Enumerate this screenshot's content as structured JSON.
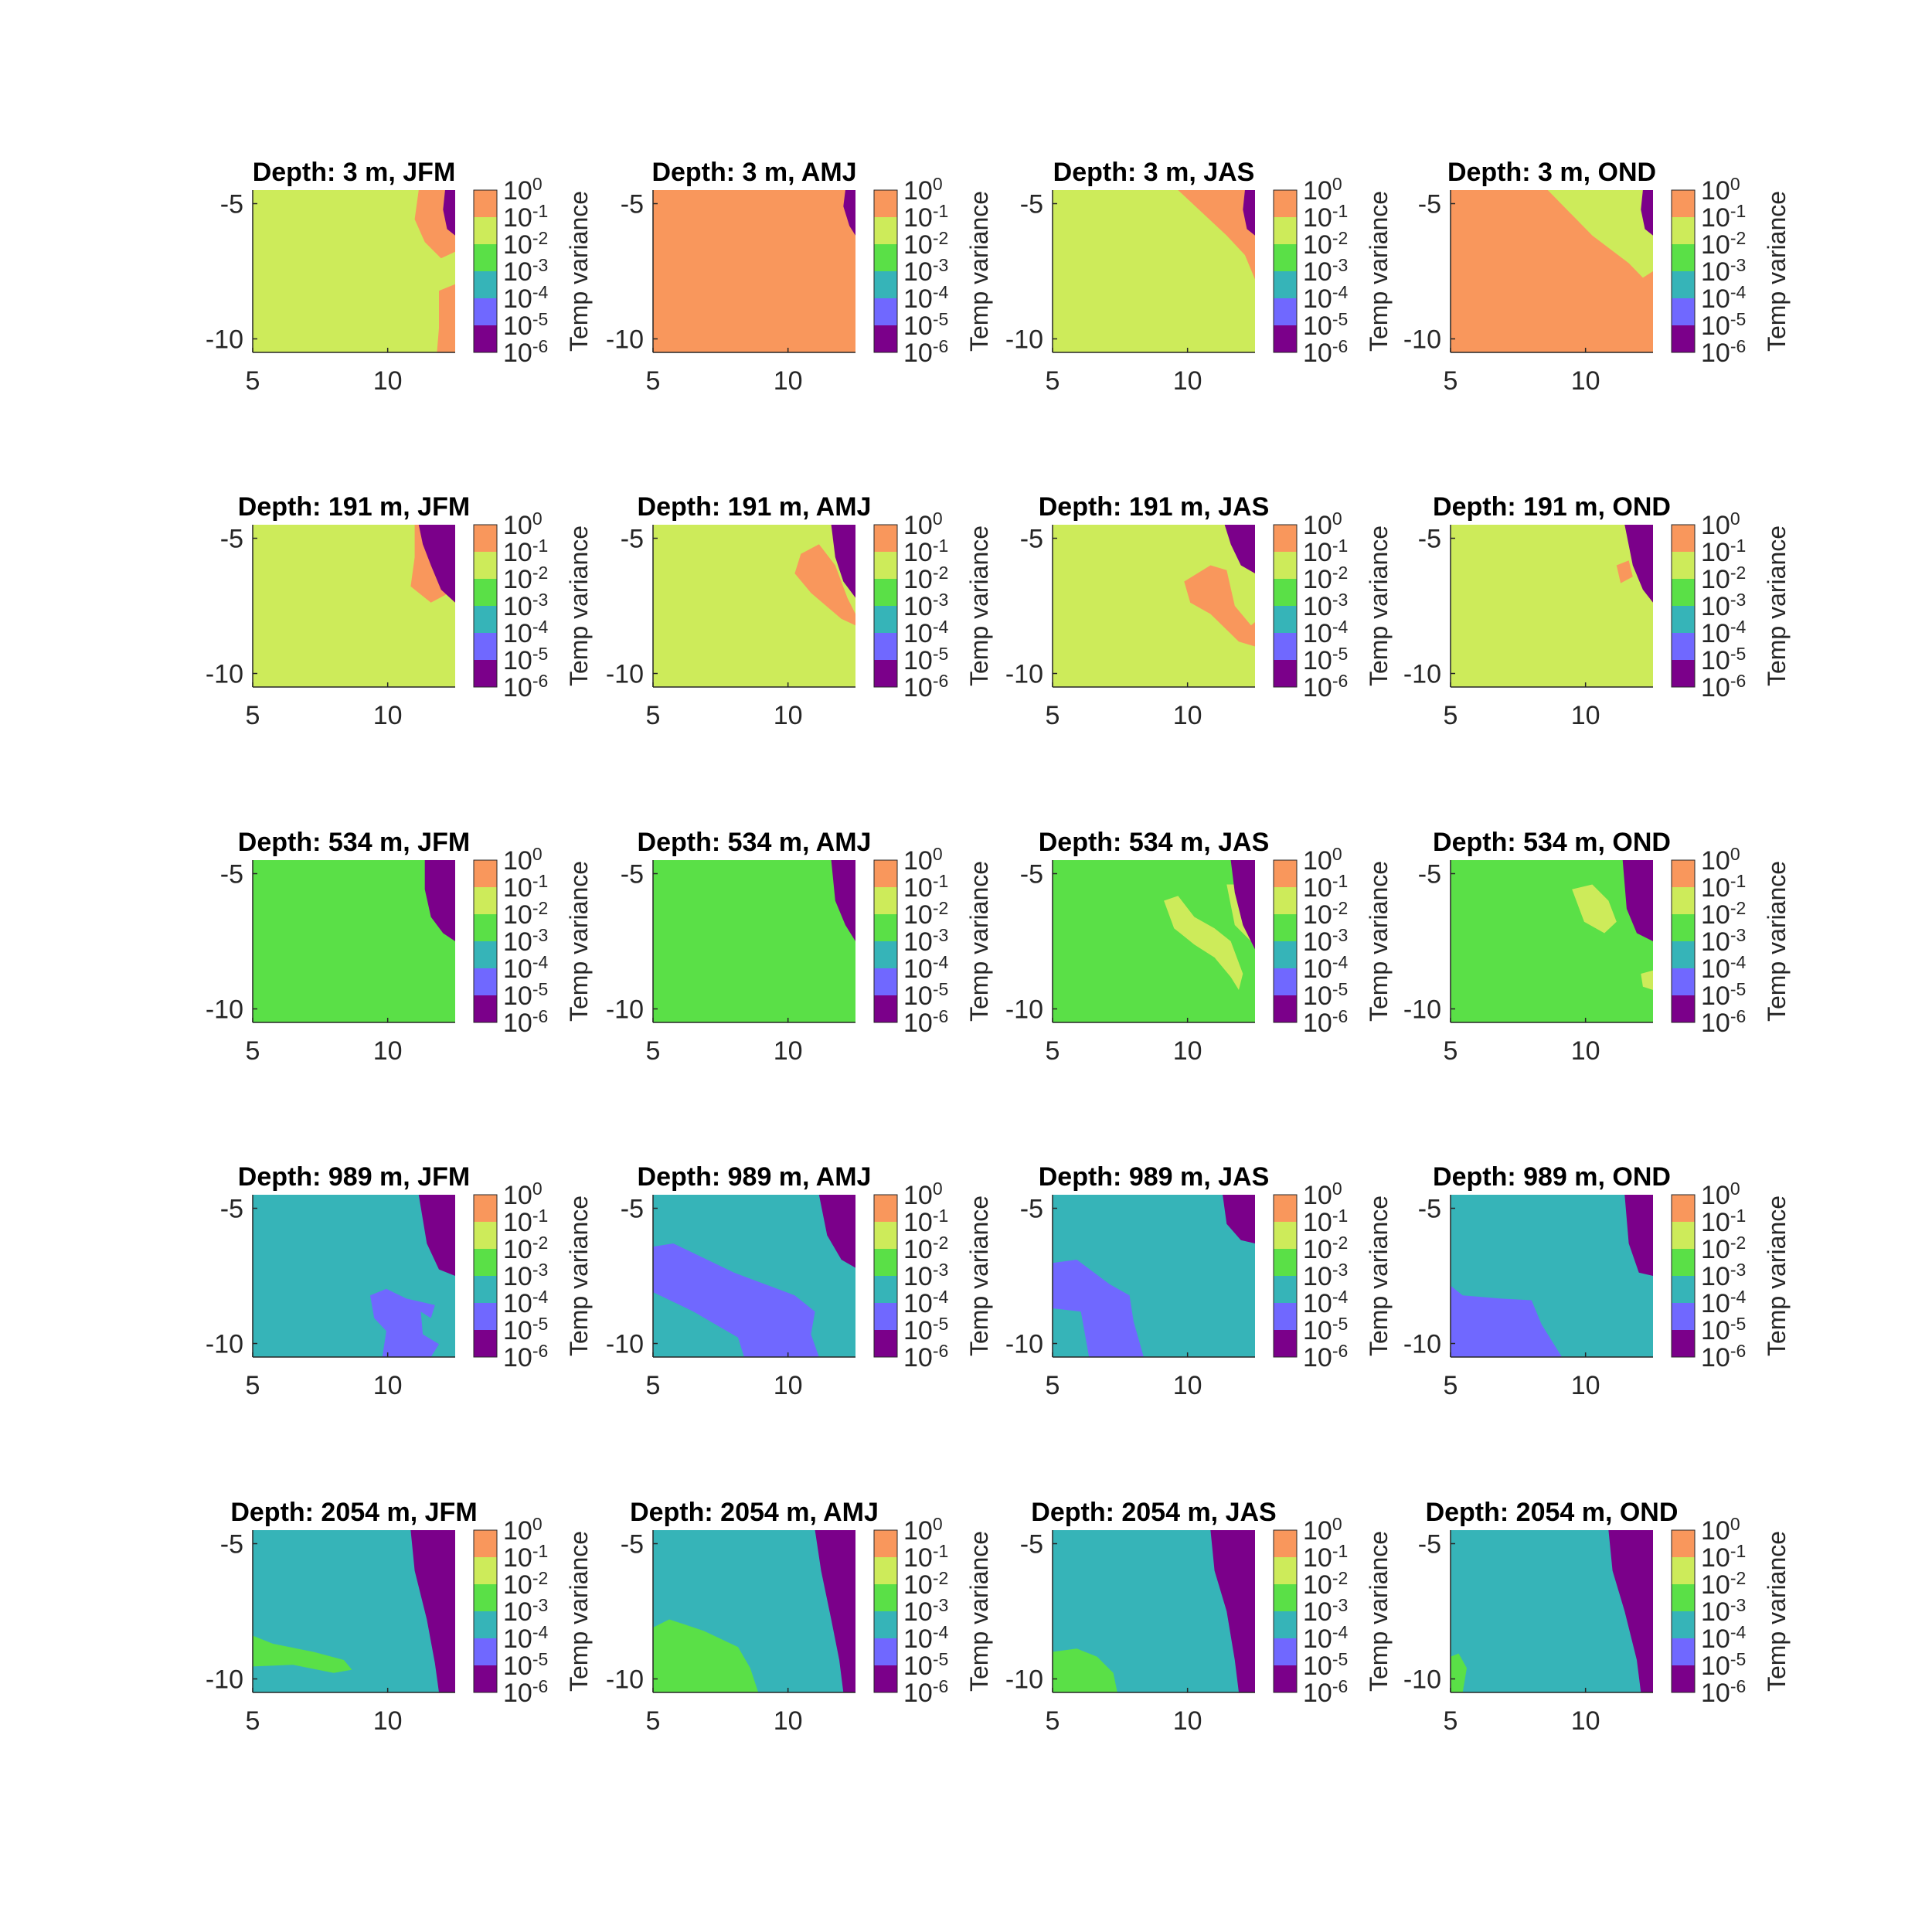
{
  "chart_data": {
    "type": "heatmap",
    "layout": {
      "rows": 5,
      "cols": 4
    },
    "x_ticks": [
      5,
      10
    ],
    "y_ticks": [
      -5,
      -10
    ],
    "xlim": [
      5,
      12.5
    ],
    "ylim": [
      -10.5,
      -4.5
    ],
    "colorbar": {
      "label": "Temp variance",
      "scale": "log",
      "ticks": [
        {
          "base": "10",
          "exp": "0"
        },
        {
          "base": "10",
          "exp": "-1"
        },
        {
          "base": "10",
          "exp": "-2"
        },
        {
          "base": "10",
          "exp": "-3"
        },
        {
          "base": "10",
          "exp": "-4"
        },
        {
          "base": "10",
          "exp": "-5"
        },
        {
          "base": "10",
          "exp": "-6"
        }
      ],
      "colors": [
        "#F9975C",
        "#CDEB5A",
        "#5AE047",
        "#36B4B8",
        "#7068FF",
        "#7B008A"
      ]
    },
    "panels": [
      {
        "title": "Depth: 3 m, JFM",
        "background_level": 1
      },
      {
        "title": "Depth: 3 m, AMJ",
        "background_level": 0
      },
      {
        "title": "Depth: 3 m, JAS",
        "background_level": 1
      },
      {
        "title": "Depth: 3 m, OND",
        "background_level": 0
      },
      {
        "title": "Depth: 191 m, JFM",
        "background_level": 1
      },
      {
        "title": "Depth: 191 m, AMJ",
        "background_level": 1
      },
      {
        "title": "Depth: 191 m, JAS",
        "background_level": 1
      },
      {
        "title": "Depth: 191 m, OND",
        "background_level": 1
      },
      {
        "title": "Depth: 534 m, JFM",
        "background_level": 2
      },
      {
        "title": "Depth: 534 m, AMJ",
        "background_level": 2
      },
      {
        "title": "Depth: 534 m, JAS",
        "background_level": 2
      },
      {
        "title": "Depth: 534 m, OND",
        "background_level": 2
      },
      {
        "title": "Depth: 989 m, JFM",
        "background_level": 3
      },
      {
        "title": "Depth: 989 m, AMJ",
        "background_level": 3
      },
      {
        "title": "Depth: 989 m, JAS",
        "background_level": 3
      },
      {
        "title": "Depth: 989 m, OND",
        "background_level": 3
      },
      {
        "title": "Depth: 2054 m, JFM",
        "background_level": 3
      },
      {
        "title": "Depth: 2054 m, AMJ",
        "background_level": 3
      },
      {
        "title": "Depth: 2054 m, JAS",
        "background_level": 3
      },
      {
        "title": "Depth: 2054 m, OND",
        "background_level": 3
      }
    ]
  }
}
